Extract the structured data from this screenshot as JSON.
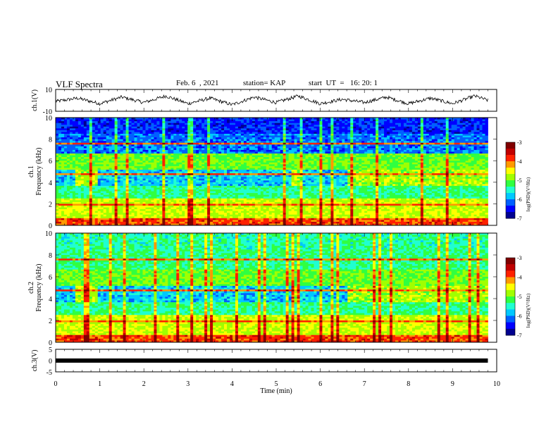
{
  "header": {
    "title": "VLF Spectra",
    "date": "Feb. 6  , 2021",
    "station": "station= KAP",
    "start": "start  UT  =   16: 20: 1"
  },
  "colors": {
    "frame": "#000000",
    "background": "#ffffff",
    "colormap": [
      "#000090",
      "#0000ff",
      "#0060ff",
      "#00c8ff",
      "#20ffd0",
      "#30ff40",
      "#a0ff00",
      "#ffff00",
      "#ff9900",
      "#ff2000",
      "#c00000",
      "#800000"
    ]
  },
  "chart_data": [
    {
      "type": "line",
      "panel": "ch1-waveform",
      "ylabel": "ch.1(V)",
      "ylim": [
        -10,
        10
      ],
      "yticks": [
        "10",
        "-10"
      ],
      "xlim": [
        0,
        10
      ],
      "description_values": "oscillating waveform roughly between -5 and 5 V over 9.8 min",
      "x": [
        0,
        0.5,
        1,
        1.5,
        2,
        2.5,
        3,
        3.5,
        4,
        4.5,
        5,
        5.5,
        6,
        6.5,
        7,
        7.5,
        8,
        8.5,
        9,
        9.5,
        9.8
      ],
      "y": [
        -1,
        2,
        -3,
        3,
        -2,
        4,
        -3,
        2,
        -4,
        3,
        -2,
        4,
        -3,
        1,
        -2,
        3,
        -3,
        2,
        -3,
        4,
        0
      ]
    },
    {
      "type": "heatmap",
      "panel": "ch1-spectrogram",
      "ylabel": "Frequency (kHz)",
      "channel_label": "ch.1",
      "ylim": [
        0,
        10
      ],
      "yticks": [
        "0",
        "2",
        "4",
        "6",
        "8",
        "10"
      ],
      "xlim": [
        0,
        10
      ],
      "colorbar": {
        "label": "log(PSD)(V²/Hz)",
        "range": [
          -7,
          -3
        ],
        "ticks": [
          "-3",
          "-4",
          "-5",
          "-6",
          "-7"
        ]
      }
    },
    {
      "type": "heatmap",
      "panel": "ch2-spectrogram",
      "ylabel": "Frequency (kHz)",
      "channel_label": "ch.2",
      "ylim": [
        0,
        10
      ],
      "yticks": [
        "0",
        "2",
        "4",
        "6",
        "8",
        "10"
      ],
      "xlim": [
        0,
        10
      ],
      "colorbar": {
        "label": "log(PSD)(V²/Hz)",
        "range": [
          -7,
          -3
        ],
        "ticks": [
          "-3",
          "-4",
          "-5",
          "-6",
          "-7"
        ]
      }
    },
    {
      "type": "line",
      "panel": "ch3-waveform",
      "ylabel": "ch.3(V)",
      "ylim": [
        -5,
        5
      ],
      "yticks": [
        "5",
        "0",
        "-5"
      ],
      "xlim": [
        0,
        10
      ],
      "x": [
        0,
        9.8
      ],
      "y": [
        0,
        0
      ]
    }
  ],
  "xaxis": {
    "label": "Time  (min)",
    "ticks": [
      "0",
      "1",
      "2",
      "3",
      "4",
      "5",
      "6",
      "7",
      "8",
      "9",
      "10"
    ]
  }
}
